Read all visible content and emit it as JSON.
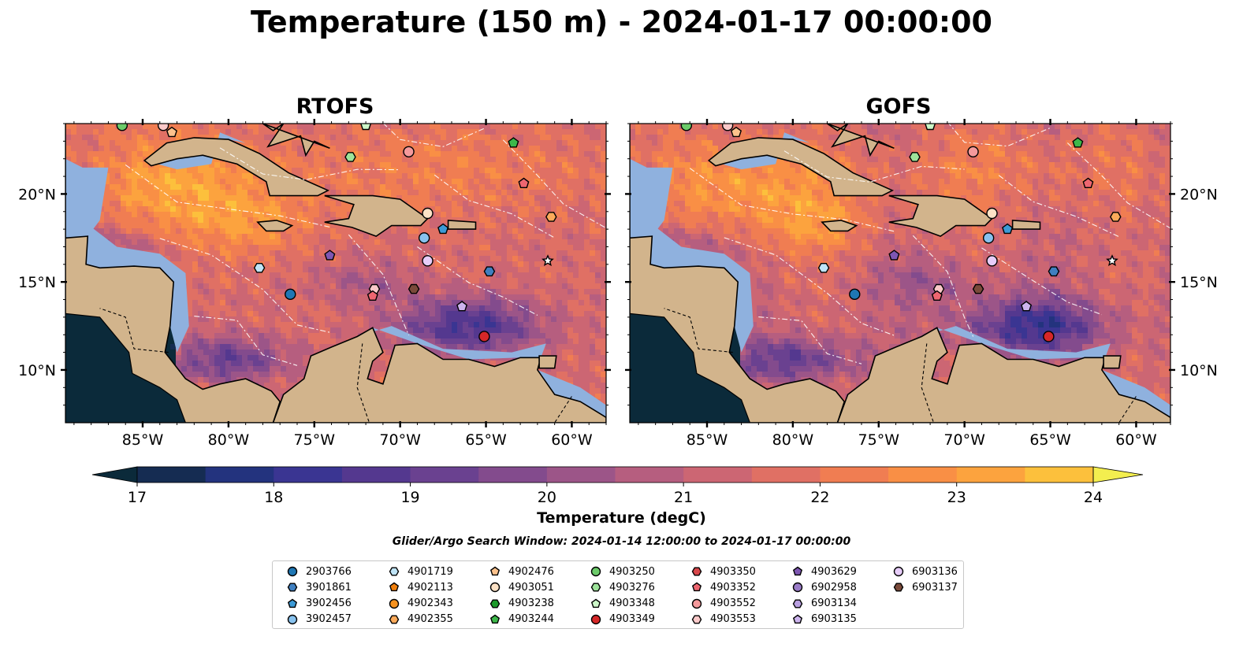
{
  "title": "Temperature (150 m) - 2024-01-17 00:00:00",
  "panels": [
    {
      "title": "RTOFS"
    },
    {
      "title": "GOFS"
    }
  ],
  "axes": {
    "lon_ticks": [
      "85°W",
      "80°W",
      "75°W",
      "70°W",
      "65°W",
      "60°W"
    ],
    "lat_ticks": [
      "20°N",
      "15°N",
      "10°N"
    ]
  },
  "colors": {
    "land": "#d2b48c",
    "shelf": "#8fb1de",
    "colormap": [
      "#0b2a3a",
      "#152c52",
      "#23337e",
      "#3a3592",
      "#54388f",
      "#6a4190",
      "#834b8d",
      "#9c5588",
      "#b65e7f",
      "#cc6673",
      "#e07064",
      "#f07d52",
      "#f98f45",
      "#fca33e",
      "#fcc03c",
      "#f3ee4f"
    ]
  },
  "colorbar": {
    "label": "Temperature (degC)",
    "ticks": [
      "17",
      "18",
      "19",
      "20",
      "21",
      "22",
      "23",
      "24"
    ]
  },
  "search_window": "Glider/Argo Search Window: 2024-01-14 12:00:00 to 2024-01-17 00:00:00",
  "legend": [
    {
      "id": "2903766",
      "shape": "circle",
      "color": "#1f77b4"
    },
    {
      "id": "3901861",
      "shape": "hexagon",
      "color": "#3f7fc0"
    },
    {
      "id": "3902456",
      "shape": "pentagon",
      "color": "#3c9ad6"
    },
    {
      "id": "3902457",
      "shape": "circle",
      "color": "#88c2ee"
    },
    {
      "id": "4901719",
      "shape": "hexagon",
      "color": "#bfe4f7"
    },
    {
      "id": "4902113",
      "shape": "pentagon",
      "color": "#f07f0c"
    },
    {
      "id": "4902343",
      "shape": "circle",
      "color": "#f7921e"
    },
    {
      "id": "4902355",
      "shape": "hexagon",
      "color": "#fcaa5a"
    },
    {
      "id": "4902476",
      "shape": "pentagon",
      "color": "#fcc28c"
    },
    {
      "id": "4903051",
      "shape": "circle",
      "color": "#fde2c6"
    },
    {
      "id": "4903238",
      "shape": "hexagon",
      "color": "#1c9a2a"
    },
    {
      "id": "4903244",
      "shape": "pentagon",
      "color": "#3db84a"
    },
    {
      "id": "4903250",
      "shape": "circle",
      "color": "#6ccb6a"
    },
    {
      "id": "4903276",
      "shape": "hexagon",
      "color": "#9de39a"
    },
    {
      "id": "4903348",
      "shape": "pentagon",
      "color": "#ccf7c8"
    },
    {
      "id": "4903349",
      "shape": "circle",
      "color": "#d62728"
    },
    {
      "id": "4903350",
      "shape": "hexagon",
      "color": "#d8474a"
    },
    {
      "id": "4903352",
      "shape": "pentagon",
      "color": "#ee6670"
    },
    {
      "id": "4903552",
      "shape": "circle",
      "color": "#f59a9c"
    },
    {
      "id": "4903553",
      "shape": "hexagon",
      "color": "#fbc9c9"
    },
    {
      "id": "4903629",
      "shape": "pentagon",
      "color": "#7e57b2"
    },
    {
      "id": "6902958",
      "shape": "circle",
      "color": "#9a7cc8"
    },
    {
      "id": "6903134",
      "shape": "hexagon",
      "color": "#b89fe0"
    },
    {
      "id": "6903135",
      "shape": "pentagon",
      "color": "#cdb4ee"
    },
    {
      "id": "6903136",
      "shape": "circle",
      "color": "#e7cdf9"
    },
    {
      "id": "6903137",
      "shape": "hexagon",
      "color": "#7a4a3a"
    }
  ],
  "floats": [
    {
      "lon": -76.4,
      "lat": 14.3,
      "color": "#1f77b4",
      "shape": "circle"
    },
    {
      "lon": -78.2,
      "lat": 15.8,
      "color": "#bfe4f7",
      "shape": "hexagon"
    },
    {
      "lon": -68.6,
      "lat": 17.5,
      "color": "#88c2ee",
      "shape": "circle"
    },
    {
      "lon": -67.5,
      "lat": 18.0,
      "color": "#3c9ad6",
      "shape": "pentagon"
    },
    {
      "lon": -68.4,
      "lat": 18.9,
      "color": "#fde2c6",
      "shape": "circle"
    },
    {
      "lon": -64.8,
      "lat": 15.6,
      "color": "#3f7fc0",
      "shape": "hexagon"
    },
    {
      "lon": -74.1,
      "lat": 16.5,
      "color": "#7e57b2",
      "shape": "pentagon"
    },
    {
      "lon": -71.5,
      "lat": 14.6,
      "color": "#fbc9c9",
      "shape": "hexagon"
    },
    {
      "lon": -71.6,
      "lat": 14.2,
      "color": "#ee6670",
      "shape": "pentagon"
    },
    {
      "lon": -69.2,
      "lat": 14.6,
      "color": "#7a4a3a",
      "shape": "hexagon"
    },
    {
      "lon": -68.4,
      "lat": 16.2,
      "color": "#e7cdf9",
      "shape": "circle"
    },
    {
      "lon": -66.4,
      "lat": 13.6,
      "color": "#cdb4ee",
      "shape": "pentagon"
    },
    {
      "lon": -65.1,
      "lat": 11.9,
      "color": "#d62728",
      "shape": "circle"
    },
    {
      "lon": -72.9,
      "lat": 22.1,
      "color": "#9de39a",
      "shape": "hexagon"
    },
    {
      "lon": -63.4,
      "lat": 22.9,
      "color": "#3db84a",
      "shape": "pentagon"
    },
    {
      "lon": -69.5,
      "lat": 22.4,
      "color": "#f59a9c",
      "shape": "circle"
    },
    {
      "lon": -62.8,
      "lat": 20.6,
      "color": "#ee6670",
      "shape": "pentagon"
    },
    {
      "lon": -61.2,
      "lat": 18.7,
      "color": "#fcaa5a",
      "shape": "hexagon"
    },
    {
      "lon": -61.4,
      "lat": 16.2,
      "color": "#ffffff",
      "shape": "star"
    },
    {
      "lon": -86.2,
      "lat": 23.9,
      "color": "#6ccb6a",
      "shape": "circle"
    },
    {
      "lon": -83.8,
      "lat": 23.9,
      "color": "#fbc9c9",
      "shape": "circle"
    },
    {
      "lon": -83.3,
      "lat": 23.5,
      "color": "#fcc28c",
      "shape": "pentagon"
    },
    {
      "lon": -72.0,
      "lat": 23.9,
      "color": "#ccf7c8",
      "shape": "pentagon"
    }
  ]
}
